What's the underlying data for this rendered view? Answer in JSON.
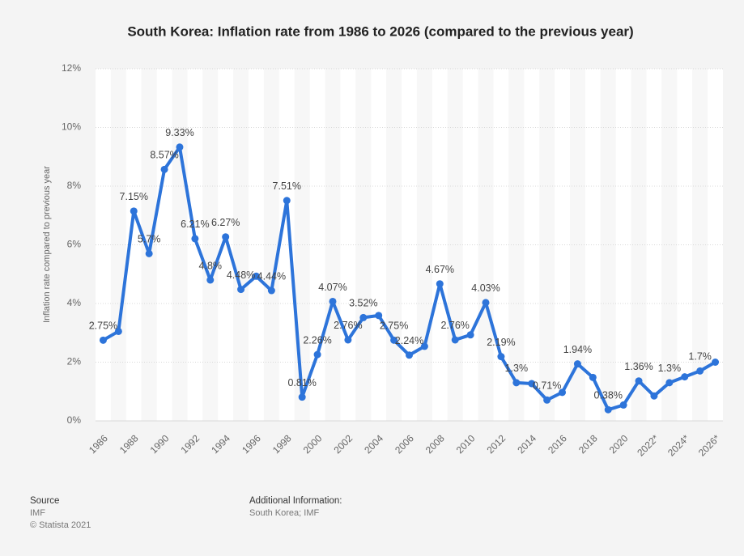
{
  "chart_data": {
    "type": "line",
    "title": "South Korea: Inflation rate from 1986 to 2026 (compared to the previous year)",
    "y_axis_label": "Inflation rate compared to previous year",
    "categories": [
      "1986",
      null,
      "1988",
      null,
      "1990",
      null,
      "1992",
      null,
      "1994",
      null,
      "1996",
      null,
      "1998",
      null,
      "2000",
      null,
      "2002",
      null,
      "2004",
      null,
      "2006",
      null,
      "2008",
      null,
      "2010",
      null,
      "2012",
      null,
      "2014",
      null,
      "2016",
      null,
      "2018",
      null,
      "2020",
      null,
      "2022*",
      null,
      "2024*",
      null,
      "2026*"
    ],
    "series": [
      {
        "name": "Inflation rate",
        "color": "#2d74da",
        "values": [
          2.75,
          3.05,
          7.15,
          5.7,
          8.57,
          9.33,
          6.21,
          4.8,
          6.27,
          4.48,
          4.93,
          4.44,
          7.51,
          0.81,
          2.26,
          4.07,
          2.76,
          3.52,
          3.59,
          2.75,
          2.24,
          2.54,
          4.67,
          2.76,
          2.93,
          4.03,
          2.19,
          1.3,
          1.27,
          0.71,
          0.97,
          1.94,
          1.48,
          0.38,
          0.54,
          1.36,
          0.85,
          1.3,
          1.5,
          1.7,
          2.0
        ],
        "value_labels": [
          "2.75%",
          null,
          "7.15%",
          "5.7%",
          "8.57%",
          "9.33%",
          "6.21%",
          "4.8%",
          "6.27%",
          "4.48%",
          null,
          "4.44%",
          "7.51%",
          "0.81%",
          "2.26%",
          "4.07%",
          "2.76%",
          "3.52%",
          null,
          "2.75%",
          "2.24%",
          null,
          "4.67%",
          "2.76%",
          null,
          "4.03%",
          "2.19%",
          "1.3%",
          null,
          "0.71%",
          null,
          "1.94%",
          null,
          "0.38%",
          null,
          "1.36%",
          null,
          "1.3%",
          null,
          "1.7%",
          null
        ]
      }
    ],
    "ylim": [
      0,
      12
    ],
    "yticks": [
      {
        "value": 0,
        "label": "0%"
      },
      {
        "value": 2,
        "label": "2%"
      },
      {
        "value": 4,
        "label": "4%"
      },
      {
        "value": 6,
        "label": "6%"
      },
      {
        "value": 8,
        "label": "8%"
      },
      {
        "value": 10,
        "label": "10%"
      },
      {
        "value": 12,
        "label": "12%"
      }
    ],
    "grid": true
  },
  "footer": {
    "source_heading": "Source",
    "source": "IMF",
    "copyright": "© Statista 2021",
    "info_heading": "Additional Information:",
    "info": "South Korea; IMF"
  }
}
